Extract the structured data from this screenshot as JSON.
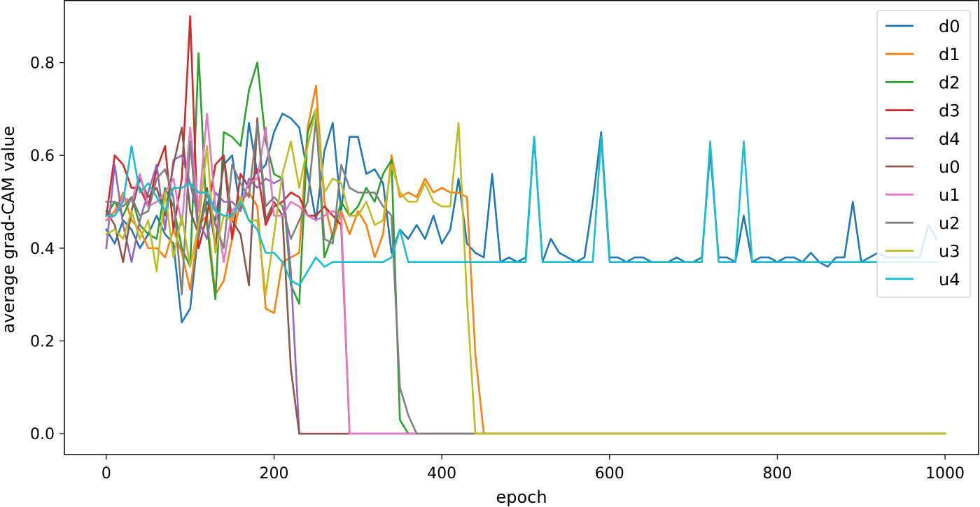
{
  "chart_data": {
    "type": "line",
    "title": "",
    "xlabel": "epoch",
    "ylabel": "average grad-CAM value",
    "xlim": [
      -50,
      1040
    ],
    "ylim": [
      -0.045,
      0.935
    ],
    "xticks": [
      0,
      200,
      400,
      600,
      800,
      1000
    ],
    "xtick_labels": [
      "0",
      "200",
      "400",
      "600",
      "800",
      "1000"
    ],
    "yticks": [
      0.0,
      0.2,
      0.4,
      0.6,
      0.8
    ],
    "ytick_labels": [
      "0.0",
      "0.2",
      "0.4",
      "0.6",
      "0.8"
    ],
    "grid": false,
    "legend_position": "upper-right",
    "series": [
      {
        "name": "d0",
        "color": "#1f77b4",
        "x": [
          0,
          10,
          20,
          30,
          40,
          50,
          60,
          70,
          80,
          90,
          100,
          110,
          120,
          130,
          140,
          150,
          160,
          170,
          180,
          190,
          200,
          210,
          220,
          230,
          240,
          250,
          260,
          270,
          280,
          290,
          300,
          310,
          320,
          330,
          340,
          350,
          360,
          370,
          380,
          390,
          400,
          410,
          420,
          430,
          440,
          450,
          460,
          470,
          480,
          490,
          500,
          510,
          520,
          530,
          540,
          550,
          560,
          570,
          580,
          590,
          600,
          610,
          620,
          630,
          640,
          650,
          660,
          670,
          680,
          690,
          700,
          710,
          720,
          730,
          740,
          750,
          760,
          770,
          780,
          790,
          800,
          810,
          820,
          830,
          840,
          850,
          860,
          870,
          880,
          890,
          900,
          910,
          920,
          930,
          940,
          950,
          960,
          970,
          980,
          990
        ],
        "values": [
          0.44,
          0.41,
          0.46,
          0.44,
          0.4,
          0.43,
          0.47,
          0.43,
          0.41,
          0.24,
          0.27,
          0.44,
          0.5,
          0.46,
          0.58,
          0.6,
          0.48,
          0.67,
          0.56,
          0.58,
          0.65,
          0.69,
          0.68,
          0.66,
          0.56,
          0.46,
          0.61,
          0.67,
          0.48,
          0.64,
          0.64,
          0.56,
          0.57,
          0.54,
          0.39,
          0.44,
          0.42,
          0.45,
          0.42,
          0.47,
          0.41,
          0.44,
          0.55,
          0.41,
          0.39,
          0.38,
          0.56,
          0.37,
          0.38,
          0.37,
          0.38,
          0.64,
          0.37,
          0.42,
          0.39,
          0.38,
          0.37,
          0.38,
          0.5,
          0.65,
          0.38,
          0.38,
          0.37,
          0.38,
          0.38,
          0.37,
          0.37,
          0.37,
          0.38,
          0.37,
          0.37,
          0.38,
          0.61,
          0.38,
          0.38,
          0.37,
          0.47,
          0.37,
          0.38,
          0.38,
          0.37,
          0.38,
          0.38,
          0.37,
          0.39,
          0.37,
          0.36,
          0.38,
          0.38,
          0.5,
          0.37,
          0.38,
          0.39,
          0.38,
          0.38,
          0.38,
          0.38,
          0.38,
          0.45,
          0.42
        ]
      },
      {
        "name": "d1",
        "color": "#ff7f0e",
        "x": [
          0,
          10,
          20,
          30,
          40,
          50,
          60,
          70,
          80,
          90,
          100,
          110,
          120,
          130,
          140,
          150,
          160,
          170,
          180,
          190,
          200,
          210,
          220,
          230,
          240,
          250,
          260,
          270,
          280,
          290,
          300,
          310,
          320,
          330,
          340,
          350,
          360,
          370,
          380,
          390,
          400,
          410,
          420,
          430,
          440,
          450,
          460,
          1000
        ],
        "values": [
          0.46,
          0.48,
          0.52,
          0.46,
          0.44,
          0.4,
          0.4,
          0.38,
          0.44,
          0.39,
          0.31,
          0.45,
          0.47,
          0.3,
          0.33,
          0.42,
          0.5,
          0.52,
          0.49,
          0.27,
          0.26,
          0.37,
          0.38,
          0.39,
          0.66,
          0.75,
          0.5,
          0.42,
          0.48,
          0.43,
          0.48,
          0.45,
          0.38,
          0.43,
          0.6,
          0.51,
          0.52,
          0.51,
          0.55,
          0.52,
          0.53,
          0.52,
          0.52,
          0.51,
          0.17,
          0.0,
          0.0,
          0.0
        ]
      },
      {
        "name": "d2",
        "color": "#2ca02c",
        "x": [
          0,
          10,
          20,
          30,
          40,
          50,
          60,
          70,
          80,
          90,
          100,
          110,
          120,
          130,
          140,
          150,
          160,
          170,
          180,
          190,
          200,
          210,
          220,
          230,
          240,
          250,
          260,
          270,
          280,
          290,
          300,
          310,
          320,
          330,
          340,
          350,
          360,
          370,
          1000
        ],
        "values": [
          0.47,
          0.5,
          0.47,
          0.51,
          0.45,
          0.43,
          0.42,
          0.53,
          0.49,
          0.4,
          0.36,
          0.82,
          0.45,
          0.29,
          0.65,
          0.64,
          0.62,
          0.74,
          0.8,
          0.63,
          0.56,
          0.55,
          0.32,
          0.28,
          0.65,
          0.7,
          0.38,
          0.43,
          0.5,
          0.47,
          0.49,
          0.53,
          0.5,
          0.56,
          0.59,
          0.03,
          0.0,
          0.0,
          0.0
        ]
      },
      {
        "name": "d3",
        "color": "#d62728",
        "x": [
          0,
          10,
          20,
          30,
          40,
          50,
          60,
          70,
          80,
          90,
          100,
          110,
          120,
          130,
          140,
          150,
          160,
          170,
          180,
          190,
          200,
          210,
          220,
          230,
          240,
          250,
          260,
          270,
          280,
          290,
          300,
          1000
        ],
        "values": [
          0.47,
          0.6,
          0.58,
          0.53,
          0.53,
          0.49,
          0.57,
          0.62,
          0.44,
          0.55,
          0.9,
          0.4,
          0.47,
          0.58,
          0.6,
          0.42,
          0.56,
          0.53,
          0.57,
          0.45,
          0.49,
          0.5,
          0.52,
          0.51,
          0.47,
          0.47,
          0.49,
          0.47,
          0.45,
          0.0,
          0.0,
          0.0
        ]
      },
      {
        "name": "d4",
        "color": "#9467bd",
        "x": [
          0,
          10,
          20,
          30,
          40,
          50,
          60,
          70,
          80,
          90,
          100,
          110,
          120,
          130,
          140,
          150,
          160,
          170,
          180,
          190,
          200,
          210,
          220,
          230,
          1000
        ],
        "values": [
          0.4,
          0.58,
          0.45,
          0.37,
          0.46,
          0.52,
          0.58,
          0.44,
          0.59,
          0.6,
          0.54,
          0.46,
          0.42,
          0.52,
          0.5,
          0.5,
          0.48,
          0.55,
          0.53,
          0.55,
          0.54,
          0.55,
          0.35,
          0.0,
          0.0
        ]
      },
      {
        "name": "u0",
        "color": "#8c564b",
        "x": [
          0,
          10,
          20,
          30,
          40,
          50,
          60,
          70,
          80,
          90,
          100,
          110,
          120,
          130,
          140,
          150,
          160,
          170,
          180,
          190,
          200,
          210,
          220,
          230,
          240,
          1000
        ],
        "values": [
          0.48,
          0.45,
          0.37,
          0.48,
          0.55,
          0.51,
          0.53,
          0.47,
          0.58,
          0.66,
          0.48,
          0.43,
          0.53,
          0.4,
          0.6,
          0.46,
          0.43,
          0.32,
          0.68,
          0.46,
          0.5,
          0.47,
          0.14,
          0.0,
          0.0,
          0.0
        ]
      },
      {
        "name": "u1",
        "color": "#e377c2",
        "x": [
          0,
          10,
          20,
          30,
          40,
          50,
          60,
          70,
          80,
          90,
          100,
          110,
          120,
          130,
          140,
          150,
          160,
          170,
          180,
          190,
          200,
          210,
          220,
          230,
          240,
          250,
          260,
          270,
          280,
          290,
          300,
          1000
        ],
        "values": [
          0.46,
          0.47,
          0.51,
          0.5,
          0.56,
          0.49,
          0.5,
          0.52,
          0.55,
          0.45,
          0.66,
          0.48,
          0.69,
          0.49,
          0.37,
          0.48,
          0.5,
          0.54,
          0.55,
          0.66,
          0.47,
          0.47,
          0.5,
          0.49,
          0.47,
          0.46,
          0.47,
          0.48,
          0.47,
          0.0,
          0.0,
          0.0
        ]
      },
      {
        "name": "u2",
        "color": "#7f7f7f",
        "x": [
          0,
          10,
          20,
          30,
          40,
          50,
          60,
          70,
          80,
          90,
          100,
          110,
          120,
          130,
          140,
          150,
          160,
          170,
          180,
          190,
          200,
          210,
          220,
          230,
          240,
          250,
          260,
          270,
          280,
          290,
          300,
          310,
          320,
          330,
          340,
          350,
          360,
          370,
          1000
        ],
        "values": [
          0.5,
          0.5,
          0.49,
          0.51,
          0.47,
          0.48,
          0.55,
          0.57,
          0.51,
          0.3,
          0.63,
          0.42,
          0.52,
          0.45,
          0.4,
          0.58,
          0.54,
          0.51,
          0.67,
          0.49,
          0.51,
          0.49,
          0.42,
          0.46,
          0.5,
          0.68,
          0.42,
          0.41,
          0.58,
          0.53,
          0.52,
          0.52,
          0.52,
          0.49,
          0.47,
          0.1,
          0.04,
          0.0,
          0.0
        ]
      },
      {
        "name": "u3",
        "color": "#bcbd22",
        "x": [
          0,
          10,
          20,
          30,
          40,
          50,
          60,
          70,
          80,
          90,
          100,
          110,
          120,
          130,
          140,
          150,
          160,
          170,
          180,
          190,
          200,
          210,
          220,
          230,
          240,
          250,
          260,
          270,
          280,
          290,
          300,
          310,
          320,
          330,
          340,
          350,
          360,
          370,
          380,
          390,
          400,
          410,
          420,
          430,
          440,
          1000
        ],
        "values": [
          0.43,
          0.44,
          0.42,
          0.48,
          0.42,
          0.46,
          0.35,
          0.52,
          0.38,
          0.47,
          0.36,
          0.45,
          0.62,
          0.39,
          0.47,
          0.46,
          0.51,
          0.46,
          0.46,
          0.3,
          0.43,
          0.56,
          0.63,
          0.53,
          0.62,
          0.7,
          0.52,
          0.55,
          0.54,
          0.47,
          0.47,
          0.5,
          0.45,
          0.46,
          0.58,
          0.52,
          0.5,
          0.5,
          0.54,
          0.5,
          0.49,
          0.49,
          0.67,
          0.29,
          0.0,
          0.0
        ]
      },
      {
        "name": "u4",
        "color": "#17becf",
        "x": [
          0,
          10,
          20,
          30,
          40,
          50,
          60,
          70,
          80,
          90,
          100,
          110,
          120,
          130,
          140,
          150,
          160,
          170,
          180,
          190,
          200,
          210,
          220,
          230,
          240,
          250,
          260,
          270,
          280,
          290,
          300,
          310,
          320,
          330,
          340,
          350,
          360,
          370,
          380,
          390,
          400,
          410,
          420,
          430,
          440,
          450,
          460,
          470,
          480,
          490,
          500,
          510,
          520,
          530,
          540,
          550,
          560,
          570,
          580,
          590,
          600,
          610,
          620,
          630,
          640,
          650,
          660,
          670,
          680,
          690,
          700,
          710,
          720,
          730,
          740,
          750,
          760,
          770,
          780,
          790,
          800,
          810,
          820,
          830,
          840,
          850,
          860,
          870,
          880,
          890,
          900,
          910,
          920,
          930,
          940,
          950,
          960,
          970,
          980,
          990
        ],
        "values": [
          0.47,
          0.47,
          0.5,
          0.62,
          0.52,
          0.54,
          0.51,
          0.48,
          0.53,
          0.53,
          0.54,
          0.52,
          0.52,
          0.48,
          0.47,
          0.47,
          0.5,
          0.46,
          0.44,
          0.39,
          0.39,
          0.37,
          0.33,
          0.32,
          0.35,
          0.38,
          0.36,
          0.37,
          0.37,
          0.37,
          0.37,
          0.37,
          0.37,
          0.37,
          0.38,
          0.44,
          0.37,
          0.37,
          0.37,
          0.37,
          0.37,
          0.37,
          0.37,
          0.37,
          0.37,
          0.37,
          0.37,
          0.37,
          0.37,
          0.37,
          0.37,
          0.64,
          0.37,
          0.37,
          0.37,
          0.37,
          0.37,
          0.37,
          0.37,
          0.64,
          0.37,
          0.37,
          0.37,
          0.37,
          0.37,
          0.37,
          0.37,
          0.37,
          0.37,
          0.37,
          0.37,
          0.37,
          0.63,
          0.37,
          0.37,
          0.37,
          0.63,
          0.37,
          0.37,
          0.37,
          0.37,
          0.37,
          0.37,
          0.37,
          0.37,
          0.37,
          0.37,
          0.37,
          0.37,
          0.37,
          0.37,
          0.37,
          0.37,
          0.37,
          0.37,
          0.37,
          0.37,
          0.37,
          0.37,
          0.37
        ]
      }
    ]
  }
}
